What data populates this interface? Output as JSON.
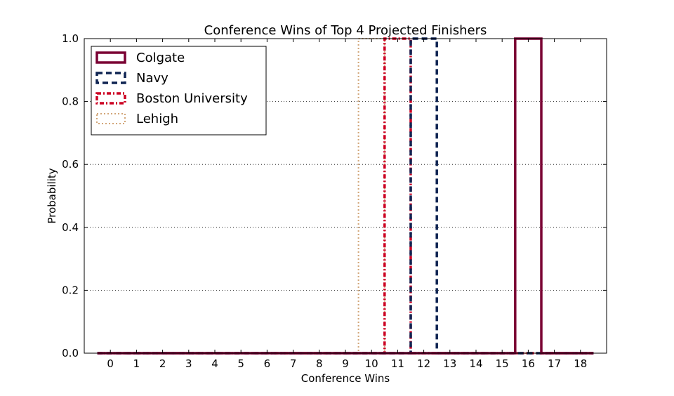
{
  "chart_data": {
    "type": "bar",
    "title": "Conference Wins of Top 4 Projected Finishers",
    "xlabel": "Conference Wins",
    "ylabel": "Probability",
    "xlim": [
      -1,
      19
    ],
    "ylim": [
      0,
      1.0
    ],
    "categories": [
      "0",
      "1",
      "2",
      "3",
      "4",
      "5",
      "6",
      "7",
      "8",
      "9",
      "10",
      "11",
      "12",
      "13",
      "14",
      "15",
      "16",
      "17",
      "18"
    ],
    "x_ticks": [
      0,
      1,
      2,
      3,
      4,
      5,
      6,
      7,
      8,
      9,
      10,
      11,
      12,
      13,
      14,
      15,
      16,
      17,
      18
    ],
    "y_ticks": [
      0.0,
      0.2,
      0.4,
      0.6,
      0.8,
      1.0
    ],
    "y_tick_labels": [
      "0.0",
      "0.2",
      "0.4",
      "0.6",
      "0.8",
      "1.0"
    ],
    "grid": "horizontal-dotted",
    "legend_position": "top-left",
    "series": [
      {
        "name": "Colgate",
        "color": "#7a0033",
        "linestyle": "solid",
        "values": [
          0,
          0,
          0,
          0,
          0,
          0,
          0,
          0,
          0,
          0,
          0,
          0,
          0,
          0,
          0,
          0,
          1.0,
          0,
          0
        ]
      },
      {
        "name": "Navy",
        "color": "#0f2452",
        "linestyle": "dashed",
        "values": [
          0,
          0,
          0,
          0,
          0,
          0,
          0,
          0,
          0,
          0,
          0,
          0,
          1.0,
          0,
          0,
          0,
          0,
          0,
          0
        ]
      },
      {
        "name": "Boston University",
        "color": "#cc0022",
        "linestyle": "dashdot",
        "values": [
          0,
          0,
          0,
          0,
          0,
          0,
          0,
          0,
          0,
          0,
          0,
          1.0,
          0,
          0,
          0,
          0,
          0,
          0,
          0
        ]
      },
      {
        "name": "Lehigh",
        "color": "#d2a679",
        "linestyle": "dotted",
        "values": [
          0,
          0,
          0,
          0,
          0,
          0,
          0,
          0,
          0,
          0,
          1.0,
          0,
          0,
          0,
          0,
          0,
          0,
          0,
          0
        ]
      }
    ]
  }
}
